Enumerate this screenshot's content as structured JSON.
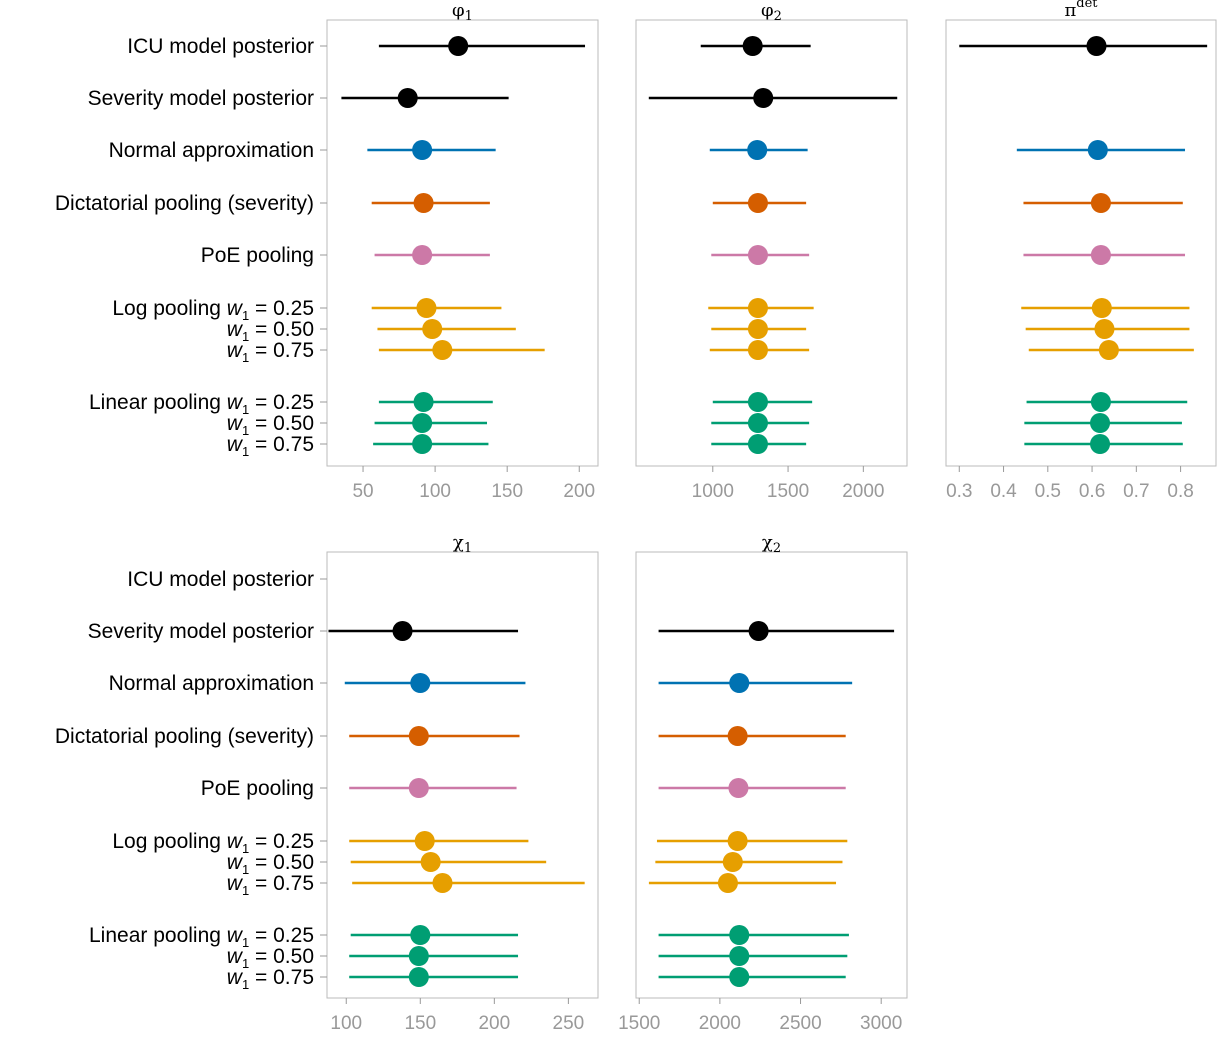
{
  "colors": {
    "ICU": "#000000",
    "severity": "#000000",
    "normal": "#0072B2",
    "dictatorial": "#D55E00",
    "poe": "#CC79A7",
    "log": "#E69F00",
    "linear": "#009E73",
    "axis": "#999999",
    "frame": "#bbbbbb"
  },
  "row_labels": {
    "icu": "ICU model posterior",
    "severity": "Severity model posterior",
    "normal": "Normal approximation",
    "dictatorial": "Dictatorial pooling (severity)",
    "poe": "PoE pooling",
    "log_prefix": "Log pooling",
    "linear_prefix": "Linear pooling",
    "weight_symbol": "w",
    "weight_sub": "1",
    "weights": [
      " = 0.25",
      " = 0.50",
      " = 0.75"
    ]
  },
  "chart_data": [
    {
      "type": "forest",
      "title": "φ",
      "title_sub": "1",
      "xlim": [
        25,
        213
      ],
      "ticks": [
        50,
        100,
        150,
        200
      ],
      "rows": [
        {
          "group": "icu",
          "lo": 61,
          "mid": 116,
          "hi": 204
        },
        {
          "group": "severity",
          "lo": 35,
          "mid": 81,
          "hi": 151
        },
        {
          "group": "normal",
          "lo": 53,
          "mid": 91,
          "hi": 142
        },
        {
          "group": "dictatorial",
          "lo": 56,
          "mid": 92,
          "hi": 138
        },
        {
          "group": "poe",
          "lo": 58,
          "mid": 91,
          "hi": 138
        },
        {
          "group": "log",
          "weight": 0,
          "lo": 56,
          "mid": 94,
          "hi": 146
        },
        {
          "group": "log",
          "weight": 1,
          "lo": 60,
          "mid": 98,
          "hi": 156
        },
        {
          "group": "log",
          "weight": 2,
          "lo": 61,
          "mid": 105,
          "hi": 176
        },
        {
          "group": "linear",
          "weight": 0,
          "lo": 61,
          "mid": 92,
          "hi": 140
        },
        {
          "group": "linear",
          "weight": 1,
          "lo": 58,
          "mid": 91,
          "hi": 136
        },
        {
          "group": "linear",
          "weight": 2,
          "lo": 57,
          "mid": 91,
          "hi": 137
        }
      ]
    },
    {
      "type": "forest",
      "title": "φ",
      "title_sub": "2",
      "xlim": [
        490,
        2290
      ],
      "ticks": [
        1000,
        1500,
        2000
      ],
      "rows": [
        {
          "group": "icu",
          "lo": 920,
          "mid": 1265,
          "hi": 1650
        },
        {
          "group": "severity",
          "lo": 575,
          "mid": 1335,
          "hi": 2225
        },
        {
          "group": "normal",
          "lo": 980,
          "mid": 1295,
          "hi": 1630
        },
        {
          "group": "dictatorial",
          "lo": 1000,
          "mid": 1300,
          "hi": 1620
        },
        {
          "group": "poe",
          "lo": 990,
          "mid": 1300,
          "hi": 1640
        },
        {
          "group": "log",
          "weight": 0,
          "lo": 970,
          "mid": 1300,
          "hi": 1670
        },
        {
          "group": "log",
          "weight": 1,
          "lo": 990,
          "mid": 1300,
          "hi": 1620
        },
        {
          "group": "log",
          "weight": 2,
          "lo": 980,
          "mid": 1300,
          "hi": 1640
        },
        {
          "group": "linear",
          "weight": 0,
          "lo": 1000,
          "mid": 1300,
          "hi": 1660
        },
        {
          "group": "linear",
          "weight": 1,
          "lo": 990,
          "mid": 1300,
          "hi": 1640
        },
        {
          "group": "linear",
          "weight": 2,
          "lo": 990,
          "mid": 1300,
          "hi": 1620
        }
      ]
    },
    {
      "type": "forest",
      "title": "π",
      "title_sup": "det",
      "xlim": [
        0.27,
        0.88
      ],
      "ticks": [
        0.3,
        0.4,
        0.5,
        0.6,
        0.7,
        0.8
      ],
      "rows": [
        {
          "group": "icu",
          "lo": 0.3,
          "mid": 0.61,
          "hi": 0.86
        },
        {
          "group": "severity",
          "lo": null,
          "mid": null,
          "hi": null
        },
        {
          "group": "normal",
          "lo": 0.43,
          "mid": 0.613,
          "hi": 0.81
        },
        {
          "group": "dictatorial",
          "lo": 0.445,
          "mid": 0.62,
          "hi": 0.805
        },
        {
          "group": "poe",
          "lo": 0.445,
          "mid": 0.62,
          "hi": 0.81
        },
        {
          "group": "log",
          "weight": 0,
          "lo": 0.44,
          "mid": 0.622,
          "hi": 0.82
        },
        {
          "group": "log",
          "weight": 1,
          "lo": 0.45,
          "mid": 0.628,
          "hi": 0.82
        },
        {
          "group": "log",
          "weight": 2,
          "lo": 0.457,
          "mid": 0.638,
          "hi": 0.83
        },
        {
          "group": "linear",
          "weight": 0,
          "lo": 0.452,
          "mid": 0.62,
          "hi": 0.815
        },
        {
          "group": "linear",
          "weight": 1,
          "lo": 0.447,
          "mid": 0.618,
          "hi": 0.803
        },
        {
          "group": "linear",
          "weight": 2,
          "lo": 0.447,
          "mid": 0.618,
          "hi": 0.805
        }
      ]
    },
    {
      "type": "forest",
      "title": "χ",
      "title_sub": "1",
      "xlim": [
        87,
        270
      ],
      "ticks": [
        100,
        150,
        200,
        250
      ],
      "rows": [
        {
          "group": "icu",
          "lo": null,
          "mid": null,
          "hi": null
        },
        {
          "group": "severity",
          "lo": 88,
          "mid": 138,
          "hi": 216
        },
        {
          "group": "normal",
          "lo": 99,
          "mid": 150,
          "hi": 221
        },
        {
          "group": "dictatorial",
          "lo": 102,
          "mid": 149,
          "hi": 217
        },
        {
          "group": "poe",
          "lo": 102,
          "mid": 149,
          "hi": 215
        },
        {
          "group": "log",
          "weight": 0,
          "lo": 102,
          "mid": 153,
          "hi": 223
        },
        {
          "group": "log",
          "weight": 1,
          "lo": 103,
          "mid": 157,
          "hi": 235
        },
        {
          "group": "log",
          "weight": 2,
          "lo": 104,
          "mid": 165,
          "hi": 261
        },
        {
          "group": "linear",
          "weight": 0,
          "lo": 103,
          "mid": 150,
          "hi": 216
        },
        {
          "group": "linear",
          "weight": 1,
          "lo": 102,
          "mid": 149,
          "hi": 216
        },
        {
          "group": "linear",
          "weight": 2,
          "lo": 102,
          "mid": 149,
          "hi": 216
        }
      ]
    },
    {
      "type": "forest",
      "title": "χ",
      "title_sub": "2",
      "xlim": [
        1480,
        3160
      ],
      "ticks": [
        1500,
        2000,
        2500,
        3000
      ],
      "rows": [
        {
          "group": "icu",
          "lo": null,
          "mid": null,
          "hi": null
        },
        {
          "group": "severity",
          "lo": 1620,
          "mid": 2240,
          "hi": 3080
        },
        {
          "group": "normal",
          "lo": 1620,
          "mid": 2120,
          "hi": 2820
        },
        {
          "group": "dictatorial",
          "lo": 1620,
          "mid": 2110,
          "hi": 2780
        },
        {
          "group": "poe",
          "lo": 1620,
          "mid": 2115,
          "hi": 2780
        },
        {
          "group": "log",
          "weight": 0,
          "lo": 1610,
          "mid": 2110,
          "hi": 2790
        },
        {
          "group": "log",
          "weight": 1,
          "lo": 1600,
          "mid": 2080,
          "hi": 2760
        },
        {
          "group": "log",
          "weight": 2,
          "lo": 1560,
          "mid": 2050,
          "hi": 2720
        },
        {
          "group": "linear",
          "weight": 0,
          "lo": 1620,
          "mid": 2120,
          "hi": 2800
        },
        {
          "group": "linear",
          "weight": 1,
          "lo": 1620,
          "mid": 2120,
          "hi": 2790
        },
        {
          "group": "linear",
          "weight": 2,
          "lo": 1620,
          "mid": 2120,
          "hi": 2780
        }
      ]
    }
  ]
}
